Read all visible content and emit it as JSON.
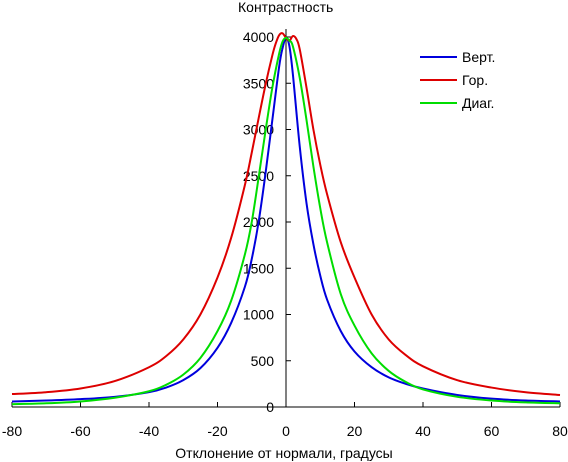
{
  "chart_data": {
    "type": "line",
    "title": "",
    "xlabel": "Отклонение от нормали, градусы",
    "ylabel": "Контрастность",
    "xlim": [
      -80,
      80
    ],
    "ylim": [
      0,
      4000
    ],
    "x_ticks": [
      -80,
      -60,
      -40,
      -20,
      0,
      20,
      40,
      60,
      80
    ],
    "y_ticks": [
      0,
      500,
      1000,
      1500,
      2000,
      2500,
      3000,
      3500,
      4000
    ],
    "grid": false,
    "legend_position": "top-right",
    "series": [
      {
        "name": "Верт.",
        "color": "#0000dd",
        "x": [
          -80,
          -70,
          -60,
          -50,
          -40,
          -35,
          -30,
          -25,
          -20,
          -16,
          -12,
          -10,
          -8,
          -6,
          -4,
          -2,
          -1,
          0,
          1,
          2,
          4,
          6,
          8,
          10,
          12,
          16,
          20,
          25,
          30,
          35,
          40,
          50,
          60,
          70,
          80
        ],
        "y": [
          60,
          70,
          85,
          110,
          160,
          210,
          290,
          420,
          640,
          910,
          1300,
          1600,
          2000,
          2520,
          3100,
          3680,
          3880,
          3990,
          3900,
          3600,
          2820,
          2200,
          1760,
          1420,
          1160,
          820,
          600,
          430,
          320,
          250,
          200,
          130,
          90,
          70,
          60
        ]
      },
      {
        "name": "Гор.",
        "color": "#dd0000",
        "x": [
          -80,
          -70,
          -60,
          -50,
          -40,
          -35,
          -30,
          -25,
          -20,
          -16,
          -12,
          -10,
          -8,
          -6,
          -4,
          -3,
          -2,
          -1,
          0,
          1,
          2,
          3,
          4,
          6,
          8,
          10,
          12,
          16,
          20,
          25,
          30,
          35,
          40,
          50,
          60,
          70,
          80
        ],
        "y": [
          140,
          160,
          200,
          280,
          430,
          550,
          730,
          1000,
          1400,
          1830,
          2400,
          2750,
          3120,
          3480,
          3800,
          3930,
          4020,
          4040,
          3990,
          3960,
          4010,
          3980,
          3870,
          3450,
          3000,
          2620,
          2300,
          1780,
          1400,
          1000,
          730,
          560,
          440,
          290,
          210,
          160,
          130
        ]
      },
      {
        "name": "Диаг.",
        "color": "#00dd00",
        "x": [
          -80,
          -70,
          -60,
          -50,
          -40,
          -35,
          -30,
          -25,
          -20,
          -16,
          -12,
          -10,
          -8,
          -6,
          -4,
          -2,
          -1,
          0,
          1,
          2,
          4,
          6,
          8,
          10,
          12,
          16,
          20,
          25,
          30,
          35,
          40,
          50,
          60,
          70,
          80
        ],
        "y": [
          30,
          40,
          60,
          100,
          170,
          240,
          350,
          530,
          820,
          1150,
          1650,
          2000,
          2480,
          2980,
          3450,
          3820,
          3950,
          3990,
          3960,
          3900,
          3560,
          3100,
          2600,
          2150,
          1780,
          1220,
          880,
          580,
          390,
          270,
          190,
          110,
          70,
          50,
          40
        ]
      }
    ]
  }
}
